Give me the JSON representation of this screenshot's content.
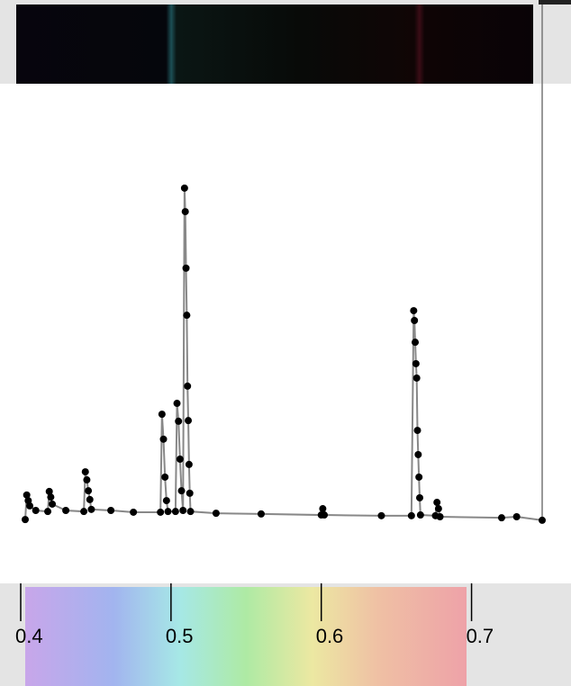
{
  "chart_data": {
    "type": "line",
    "x": [
      0.403,
      0.404,
      0.405,
      0.406,
      0.41,
      0.418,
      0.419,
      0.42,
      0.421,
      0.43,
      0.442,
      0.443,
      0.444,
      0.445,
      0.446,
      0.447,
      0.46,
      0.475,
      0.493,
      0.494,
      0.495,
      0.496,
      0.497,
      0.498,
      0.503,
      0.504,
      0.505,
      0.506,
      0.507,
      0.508,
      0.509,
      0.5095,
      0.51,
      0.5105,
      0.511,
      0.5115,
      0.512,
      0.5125,
      0.513,
      0.53,
      0.56,
      0.6,
      0.601,
      0.602,
      0.64,
      0.66,
      0.6615,
      0.662,
      0.6625,
      0.663,
      0.6635,
      0.664,
      0.6645,
      0.665,
      0.6655,
      0.666,
      0.676,
      0.677,
      0.678,
      0.679,
      0.72,
      0.73,
      0.747
    ],
    "series": [
      {
        "color": "#000000",
        "values": [
          0.033,
          0.103,
          0.087,
          0.072,
          0.059,
          0.056,
          0.113,
          0.097,
          0.077,
          0.059,
          0.056,
          0.169,
          0.146,
          0.115,
          0.09,
          0.062,
          0.059,
          0.054,
          0.054,
          0.333,
          0.262,
          0.154,
          0.087,
          0.056,
          0.056,
          0.364,
          0.313,
          0.205,
          0.115,
          0.059,
          0.977,
          0.91,
          0.749,
          0.615,
          0.413,
          0.315,
          0.19,
          0.108,
          0.056,
          0.051,
          0.049,
          0.046,
          0.064,
          0.046,
          0.044,
          0.044,
          0.628,
          0.6,
          0.538,
          0.477,
          0.436,
          0.287,
          0.218,
          0.154,
          0.095,
          0.046,
          0.044,
          0.082,
          0.064,
          0.041,
          0.038,
          0.041,
          0.031
        ]
      }
    ],
    "line_color": "#888888",
    "xlim": [
      0.4,
      0.747
    ],
    "xticks": [
      0.4,
      0.5,
      0.6,
      0.7
    ],
    "ylim": [
      0,
      1
    ]
  }
}
